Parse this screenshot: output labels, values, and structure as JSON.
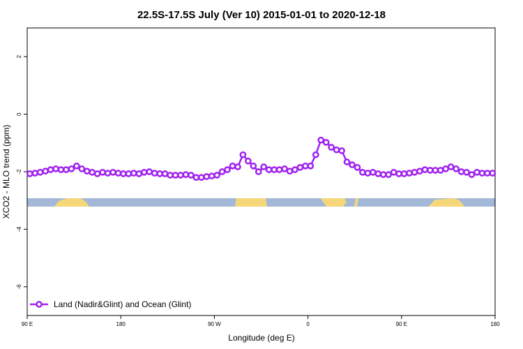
{
  "chart_data": {
    "type": "line",
    "title": "22.5S-17.5S July (Ver 10)   2015-01-01 to 2020-12-18",
    "xlabel": "Longitude (deg E)",
    "ylabel": "XCO2 - MLO trend (ppm)",
    "xlim": [
      90,
      540
    ],
    "ylim": [
      -7,
      3
    ],
    "xticks": [
      {
        "value": 90,
        "label": "90 E"
      },
      180,
      {
        "value": 270,
        "label": "90 W"
      },
      {
        "value": 360,
        "label": "0"
      },
      {
        "value": 450,
        "label": "90 E"
      },
      {
        "value": 540,
        "label": "180"
      }
    ],
    "yticks": [
      -6,
      -4,
      -2,
      0,
      2
    ],
    "grid": false,
    "legend": "bottom left",
    "x": [
      92.5,
      97.5,
      102.5,
      107.5,
      112.5,
      117.5,
      122.5,
      127.5,
      132.5,
      137.5,
      142.5,
      147.5,
      152.5,
      157.5,
      162.5,
      167.5,
      172.5,
      177.5,
      182.5,
      187.5,
      192.5,
      197.5,
      202.5,
      207.5,
      212.5,
      217.5,
      222.5,
      227.5,
      232.5,
      237.5,
      242.5,
      247.5,
      252.5,
      257.5,
      262.5,
      267.5,
      272.5,
      277.5,
      282.5,
      287.5,
      292.5,
      297.5,
      302.5,
      307.5,
      312.5,
      317.5,
      322.5,
      327.5,
      332.5,
      337.5,
      342.5,
      347.5,
      352.5,
      357.5,
      362.5,
      367.5,
      372.5,
      377.5,
      382.5,
      387.5,
      392.5,
      397.5,
      402.5,
      407.5,
      412.5,
      417.5,
      422.5,
      427.5,
      432.5,
      437.5,
      442.5,
      447.5,
      452.5,
      457.5,
      462.5,
      467.5,
      472.5,
      477.5,
      482.5,
      487.5,
      492.5,
      497.5,
      502.5,
      507.5,
      512.5,
      517.5,
      522.5,
      527.5,
      532.5,
      537.5
    ],
    "series": [
      {
        "name": "Land (Nadir&Glint) and Ocean (Glint)",
        "color": "#a020f0",
        "values": [
          -2.07,
          -2.05,
          -2.02,
          -1.98,
          -1.93,
          -1.9,
          -1.93,
          -1.93,
          -1.9,
          -1.8,
          -1.9,
          -1.98,
          -2.02,
          -2.07,
          -2.02,
          -2.05,
          -2.02,
          -2.05,
          -2.07,
          -2.07,
          -2.05,
          -2.07,
          -2.02,
          -2.0,
          -2.05,
          -2.07,
          -2.07,
          -2.12,
          -2.12,
          -2.12,
          -2.1,
          -2.12,
          -2.2,
          -2.2,
          -2.17,
          -2.15,
          -2.12,
          -2.0,
          -1.93,
          -1.8,
          -1.83,
          -1.41,
          -1.63,
          -1.8,
          -2.0,
          -1.83,
          -1.93,
          -1.93,
          -1.93,
          -1.9,
          -1.98,
          -1.93,
          -1.85,
          -1.8,
          -1.8,
          -1.41,
          -0.9,
          -0.98,
          -1.15,
          -1.24,
          -1.27,
          -1.66,
          -1.76,
          -1.85,
          -2.02,
          -2.05,
          -2.02,
          -2.07,
          -2.1,
          -2.1,
          -2.02,
          -2.07,
          -2.07,
          -2.05,
          -2.02,
          -1.98,
          -1.93,
          -1.95,
          -1.95,
          -1.95,
          -1.9,
          -1.83,
          -1.9,
          -2.0,
          -2.02,
          -2.1,
          -2.02,
          -2.05,
          -2.05,
          -2.05
        ]
      }
    ]
  }
}
